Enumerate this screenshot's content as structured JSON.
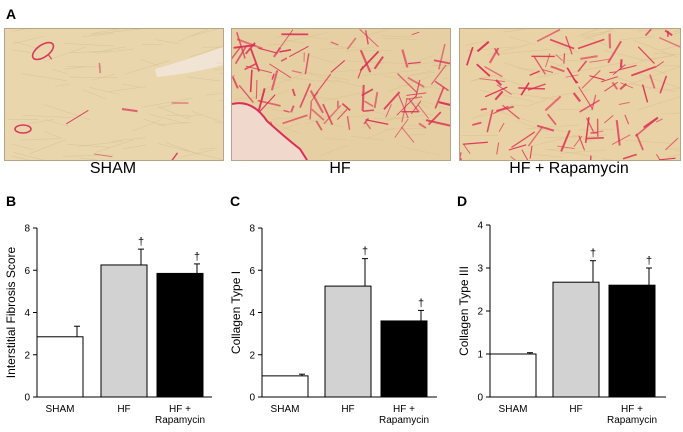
{
  "panels": {
    "a": "A",
    "b": "B",
    "c": "C",
    "d": "D"
  },
  "micrographs": [
    {
      "label": "SHAM",
      "tissue_color": "#e9d6ad",
      "fibrosis_color": "#d9395a",
      "fibrosis_level": 0.05
    },
    {
      "label": "HF",
      "tissue_color": "#e6cfa2",
      "fibrosis_color": "#dc2e55",
      "fibrosis_level": 0.6
    },
    {
      "label": "HF + Rapamycin",
      "tissue_color": "#e8d2a6",
      "fibrosis_color": "#e0284f",
      "fibrosis_level": 0.65
    }
  ],
  "chart_data": [
    {
      "type": "bar",
      "panel": "B",
      "ylabel": "Interstitial Fibrosis Score",
      "ylim": [
        0,
        8
      ],
      "yticks": [
        "0",
        "2",
        "4",
        "6",
        "8"
      ],
      "categories": [
        [
          "SHAM"
        ],
        [
          "HF"
        ],
        [
          "HF +",
          "Rapamycin"
        ]
      ],
      "values": [
        2.85,
        6.25,
        5.85
      ],
      "errors": [
        0.5,
        0.75,
        0.45
      ],
      "markers": [
        "",
        "†",
        "†"
      ],
      "colors": [
        "#ffffff",
        "#d2d2d2",
        "#000000"
      ]
    },
    {
      "type": "bar",
      "panel": "C",
      "ylabel": "Collagen Type I",
      "ylim": [
        0,
        8
      ],
      "yticks": [
        "0",
        "2",
        "4",
        "6",
        "8"
      ],
      "categories": [
        [
          "SHAM"
        ],
        [
          "HF"
        ],
        [
          "HF +",
          "Rapamycin"
        ]
      ],
      "values": [
        1.0,
        5.25,
        3.6
      ],
      "errors": [
        0.08,
        1.3,
        0.5
      ],
      "markers": [
        "",
        "†",
        "†"
      ],
      "colors": [
        "#ffffff",
        "#d2d2d2",
        "#000000"
      ]
    },
    {
      "type": "bar",
      "panel": "D",
      "ylabel": "Collagen Type III",
      "ylim": [
        0,
        4
      ],
      "yticks": [
        "0",
        "1",
        "2",
        "3",
        "4"
      ],
      "categories": [
        [
          "SHAM"
        ],
        [
          "HF"
        ],
        [
          "HF +",
          "Rapamycin"
        ]
      ],
      "values": [
        1.0,
        2.67,
        2.6
      ],
      "errors": [
        0.03,
        0.5,
        0.4
      ],
      "markers": [
        "",
        "†",
        "†"
      ],
      "colors": [
        "#ffffff",
        "#d2d2d2",
        "#000000"
      ]
    }
  ]
}
